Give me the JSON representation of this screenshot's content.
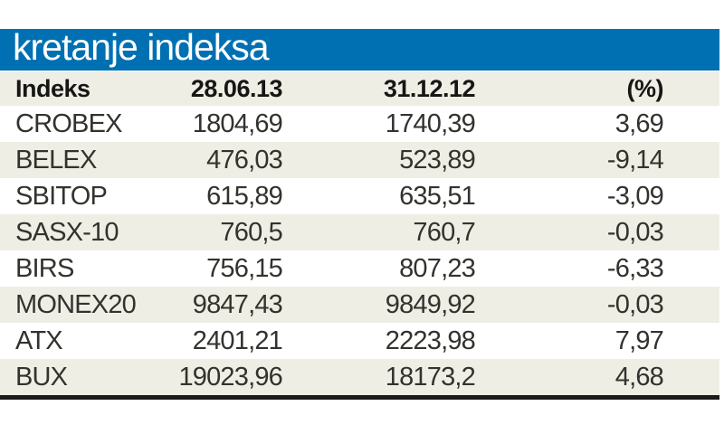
{
  "title": "kretanje indeksa",
  "colors": {
    "brand_blue": "#0070b2",
    "row_beige": "#efeee5",
    "rule_black": "#1b1b19",
    "title_text": "#ffffff"
  },
  "table": {
    "columns": [
      "Indeks",
      "28.06.13",
      "31.12.12",
      "(%)"
    ],
    "rows": [
      [
        "CROBEX",
        "1804,69",
        "1740,39",
        "3,69"
      ],
      [
        "BELEX",
        "476,03",
        "523,89",
        "-9,14"
      ],
      [
        "SBITOP",
        "615,89",
        "635,51",
        "-3,09"
      ],
      [
        "SASX-10",
        "760,5",
        "760,7",
        "-0,03"
      ],
      [
        "BIRS",
        "756,15",
        "807,23",
        "-6,33"
      ],
      [
        "MONEX20",
        "9847,43",
        "9849,92",
        "-0,03"
      ],
      [
        "ATX",
        "2401,21",
        "2223,98",
        "7,97"
      ],
      [
        "BUX",
        "19023,96",
        "18173,2",
        "4,68"
      ]
    ]
  },
  "chart_data": {
    "type": "table",
    "title": "kretanje indeksa",
    "columns": [
      "Indeks",
      "28.06.13",
      "31.12.12",
      "(%)"
    ],
    "rows": [
      {
        "indeks": "CROBEX",
        "val_28_06_13": "1804,69",
        "val_31_12_12": "1740,39",
        "pct": "3,69"
      },
      {
        "indeks": "BELEX",
        "val_28_06_13": "476,03",
        "val_31_12_12": "523,89",
        "pct": "-9,14"
      },
      {
        "indeks": "SBITOP",
        "val_28_06_13": "615,89",
        "val_31_12_12": "635,51",
        "pct": "-3,09"
      },
      {
        "indeks": "SASX-10",
        "val_28_06_13": "760,5",
        "val_31_12_12": "760,7",
        "pct": "-0,03"
      },
      {
        "indeks": "BIRS",
        "val_28_06_13": "756,15",
        "val_31_12_12": "807,23",
        "pct": "-6,33"
      },
      {
        "indeks": "MONEX20",
        "val_28_06_13": "9847,43",
        "val_31_12_12": "9849,92",
        "pct": "-0,03"
      },
      {
        "indeks": "ATX",
        "val_28_06_13": "2401,21",
        "val_31_12_12": "2223,98",
        "pct": "7,97"
      },
      {
        "indeks": "BUX",
        "val_28_06_13": "19023,96",
        "val_31_12_12": "18173,2",
        "pct": "4,68"
      }
    ]
  }
}
